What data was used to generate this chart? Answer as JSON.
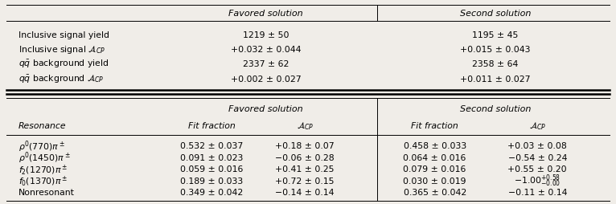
{
  "bg_color": "#f0ede8",
  "top_rows_labels": [
    "Inclusive signal yield",
    "Inclusive signal $\\mathcal{A}_{CP}$",
    "$q\\bar{q}$ background yield",
    "$q\\bar{q}$ background $\\mathcal{A}_{CP}$"
  ],
  "top_rows_favored": [
    "1219 ± 50",
    "+0.032 ± 0.044",
    "2337 ± 62",
    "+0.002 ± 0.027"
  ],
  "top_rows_second": [
    "1195 ± 45",
    "+0.015 ± 0.043",
    "2358 ± 64",
    "+0.011 ± 0.027"
  ],
  "bot_resonances": [
    "$\\rho^0(770)\\pi^\\pm$",
    "$\\rho^0(1450)\\pi^\\pm$",
    "$f_2(1270)\\pi^\\pm$",
    "$f_0(1370)\\pi^\\pm$",
    "Nonresonant"
  ],
  "bot_ff_fav": [
    "0.532 ± 0.037",
    "0.091 ± 0.023",
    "0.059 ± 0.016",
    "0.189 ± 0.033",
    "0.349 ± 0.042"
  ],
  "bot_acp_fav": [
    "+0.18 ± 0.07",
    "−0.06 ± 0.28",
    "+0.41 ± 0.25",
    "+0.72 ± 0.15",
    "−0.14 ± 0.14"
  ],
  "bot_ff_sec": [
    "0.458 ± 0.033",
    "0.064 ± 0.016",
    "0.079 ± 0.016",
    "0.030 ± 0.019",
    "0.365 ± 0.042"
  ],
  "bot_acp_sec": [
    "+0.03 ± 0.08",
    "−0.54 ± 0.24",
    "+0.55 ± 0.20",
    "$-1.00^{+0.58}_{-0.00}$",
    "−0.11 ± 0.14"
  ]
}
